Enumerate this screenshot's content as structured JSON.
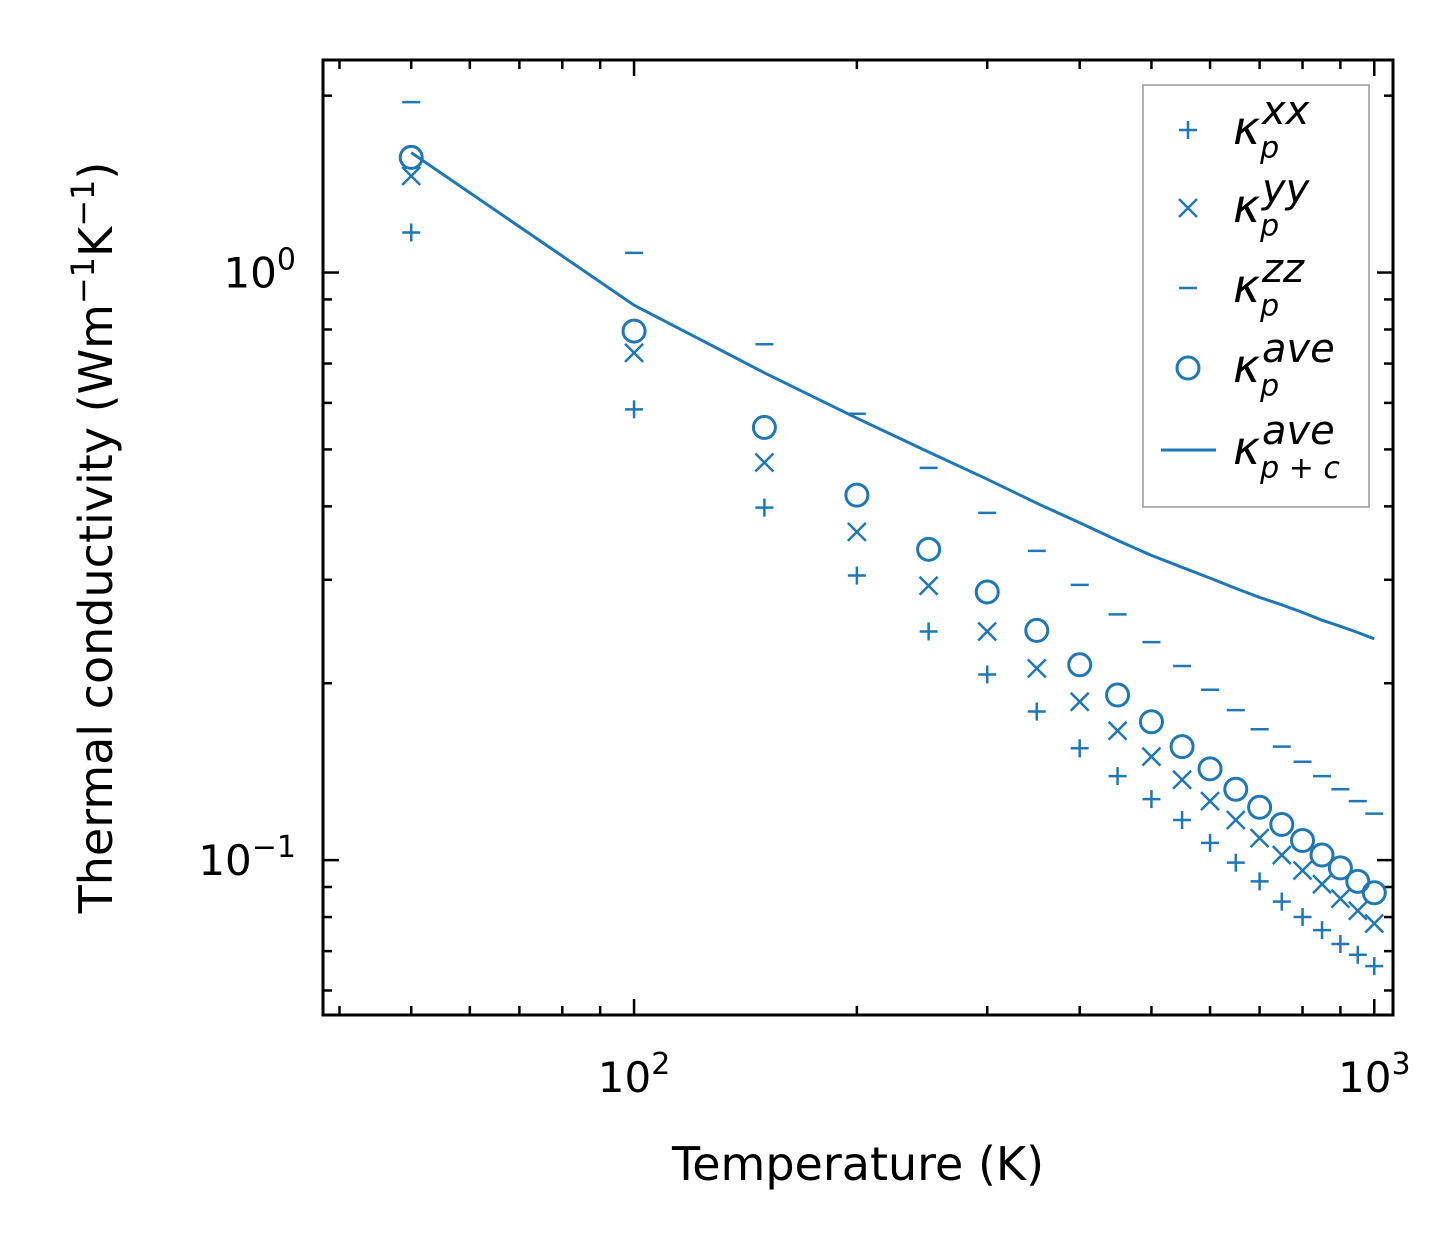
{
  "chart_data": {
    "type": "scatter",
    "xscale": "log",
    "yscale": "log",
    "xlabel": "Temperature (K)",
    "ylabel": "Thermal conductivity (Wm$^{-1}$K$^{-1}$)",
    "xlim": [
      38,
      1060
    ],
    "ylim": [
      0.0545,
      2.3
    ],
    "xticks": [
      {
        "value": 100,
        "base": "10",
        "exp": "2"
      },
      {
        "value": 1000,
        "base": "10",
        "exp": "3"
      }
    ],
    "yticks": [
      {
        "value": 0.1,
        "base": "10",
        "exp": "−1"
      },
      {
        "value": 1,
        "base": "10",
        "exp": "0"
      }
    ],
    "x": [
      50,
      100,
      150,
      200,
      250,
      300,
      350,
      400,
      450,
      500,
      550,
      600,
      650,
      700,
      750,
      800,
      850,
      900,
      950,
      1000
    ],
    "series": [
      {
        "name": "kappa_p_xx",
        "marker": "plus",
        "legend": {
          "symbol": "κ",
          "sub": "p",
          "sup": "xx"
        },
        "values": [
          1.17,
          0.585,
          0.398,
          0.305,
          0.245,
          0.207,
          0.179,
          0.155,
          0.139,
          0.127,
          0.117,
          0.107,
          0.099,
          0.092,
          0.085,
          0.08,
          0.076,
          0.072,
          0.069,
          0.066
        ]
      },
      {
        "name": "kappa_p_yy",
        "marker": "x",
        "legend": {
          "symbol": "κ",
          "sub": "p",
          "sup": "yy"
        },
        "values": [
          1.46,
          0.73,
          0.475,
          0.362,
          0.293,
          0.245,
          0.212,
          0.186,
          0.166,
          0.15,
          0.137,
          0.126,
          0.117,
          0.109,
          0.102,
          0.096,
          0.091,
          0.086,
          0.082,
          0.078
        ]
      },
      {
        "name": "kappa_p_zz",
        "marker": "hline",
        "legend": {
          "symbol": "κ",
          "sub": "p",
          "sup": "zz"
        },
        "values": [
          1.95,
          1.08,
          0.755,
          0.575,
          0.465,
          0.39,
          0.336,
          0.294,
          0.262,
          0.235,
          0.214,
          0.195,
          0.18,
          0.167,
          0.156,
          0.147,
          0.139,
          0.132,
          0.126,
          0.12
        ]
      },
      {
        "name": "kappa_p_ave",
        "marker": "circle",
        "legend": {
          "symbol": "κ",
          "sub": "p",
          "sup": "ave"
        },
        "values": [
          1.57,
          0.795,
          0.545,
          0.418,
          0.338,
          0.286,
          0.246,
          0.215,
          0.191,
          0.172,
          0.156,
          0.143,
          0.132,
          0.123,
          0.115,
          0.108,
          0.102,
          0.097,
          0.092,
          0.088
        ]
      },
      {
        "name": "kappa_p_plus_c_ave",
        "marker": "line",
        "legend": {
          "symbol": "κ",
          "sub": "p + c",
          "sup": "ave"
        },
        "values": [
          1.6,
          0.88,
          0.675,
          0.565,
          0.495,
          0.445,
          0.405,
          0.375,
          0.35,
          0.33,
          0.315,
          0.302,
          0.29,
          0.28,
          0.272,
          0.264,
          0.256,
          0.25,
          0.244,
          0.238
        ]
      }
    ],
    "color": "#1f77b4",
    "legend_position": "top-right"
  }
}
